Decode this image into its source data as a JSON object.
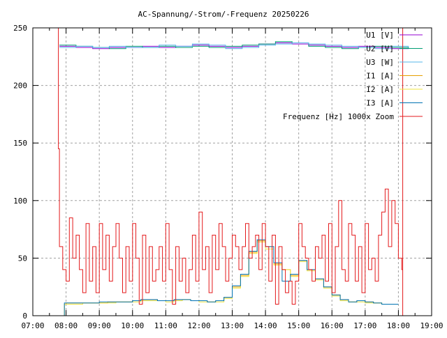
{
  "chart_data": {
    "type": "line",
    "title": "AC-Spannung/-Strom/-Frequenz 20250226",
    "xlabel": "",
    "ylabel": "",
    "xlim": [
      7,
      19
    ],
    "ylim": [
      0,
      250
    ],
    "grid": true,
    "legend_position": "top-right",
    "x_tick_labels": [
      "07:00",
      "08:00",
      "09:00",
      "10:00",
      "11:00",
      "12:00",
      "13:00",
      "14:00",
      "15:00",
      "16:00",
      "17:00",
      "18:00",
      "19:00"
    ],
    "y_tick_labels": [
      "0",
      "50",
      "100",
      "150",
      "200",
      "250"
    ],
    "series": [
      {
        "name": "U1 [V]",
        "color": "#9400d3",
        "x_start": 7.8,
        "x_step": 0.5,
        "values": [
          234,
          233,
          232,
          233,
          233,
          234,
          233,
          234,
          235,
          234,
          233,
          234,
          236,
          237,
          236,
          235,
          234,
          233,
          234,
          233,
          232,
          233
        ]
      },
      {
        "name": "U2 [V]",
        "color": "#009e73",
        "x_start": 7.8,
        "x_step": 0.5,
        "values": [
          235,
          234,
          233,
          232,
          234,
          233,
          234,
          233,
          234,
          233,
          234,
          235,
          236,
          238,
          237,
          234,
          233,
          232,
          233,
          234,
          233,
          232
        ]
      },
      {
        "name": "U3 [W]",
        "color": "#56b4e9",
        "x_start": 7.8,
        "x_step": 0.5,
        "values": [
          233,
          234,
          233,
          234,
          233,
          233,
          235,
          234,
          236,
          235,
          232,
          233,
          235,
          236,
          237,
          236,
          235,
          234,
          233,
          232,
          234,
          233
        ]
      },
      {
        "name": "I1 [A]",
        "color": "#e69f00",
        "x_start": 8.0,
        "x_step": 0.25,
        "lead_in": [
          [
            7.95,
            0
          ],
          [
            7.95,
            10
          ]
        ],
        "values": [
          11,
          11,
          11,
          11,
          11,
          12,
          12,
          12,
          13,
          14,
          14,
          13,
          13,
          14,
          14,
          13,
          13,
          12,
          13,
          16,
          25,
          35,
          55,
          65,
          60,
          45,
          40,
          35,
          48,
          40,
          32,
          25,
          18,
          14,
          12,
          13,
          12,
          11,
          10,
          10,
          10
        ]
      },
      {
        "name": "I2 [A]",
        "color": "#f0e442",
        "x_start": 8.0,
        "x_step": 0.25,
        "lead_in": [
          [
            7.95,
            0
          ],
          [
            7.95,
            10
          ]
        ],
        "values": [
          10,
          10,
          11,
          11,
          11,
          11,
          12,
          12,
          12,
          13,
          13,
          13,
          12,
          13,
          14,
          13,
          12,
          12,
          12,
          15,
          24,
          34,
          54,
          64,
          58,
          44,
          40,
          34,
          47,
          39,
          31,
          24,
          17,
          13,
          12,
          12,
          11,
          11,
          10,
          10,
          10
        ]
      },
      {
        "name": "I3 [A]",
        "color": "#0072b2",
        "x_start": 8.0,
        "x_step": 0.25,
        "lead_in": [
          [
            7.95,
            0
          ],
          [
            7.95,
            11
          ]
        ],
        "values": [
          11,
          11,
          11,
          11,
          12,
          12,
          12,
          12,
          13,
          14,
          14,
          13,
          13,
          14,
          14,
          13,
          13,
          12,
          13,
          16,
          26,
          36,
          56,
          66,
          60,
          46,
          30,
          36,
          48,
          40,
          32,
          25,
          18,
          14,
          12,
          13,
          12,
          11,
          10,
          10,
          10
        ]
      },
      {
        "name": "Frequenz [Hz] 1000x Zoom",
        "color": "#e41a1c",
        "x_start": 7.8,
        "x_step": 0.1,
        "lead_in": [
          [
            7.76,
            250
          ],
          [
            7.77,
            145
          ]
        ],
        "tail": [
          [
            18.13,
            250
          ],
          [
            18.13,
            0
          ]
        ],
        "values": [
          60,
          40,
          30,
          85,
          50,
          70,
          40,
          20,
          80,
          30,
          60,
          20,
          80,
          40,
          70,
          30,
          60,
          80,
          50,
          20,
          60,
          30,
          80,
          50,
          10,
          70,
          20,
          60,
          30,
          40,
          60,
          30,
          80,
          40,
          10,
          60,
          30,
          50,
          20,
          40,
          70,
          30,
          90,
          40,
          60,
          20,
          70,
          40,
          80,
          60,
          30,
          50,
          70,
          60,
          40,
          60,
          80,
          50,
          60,
          70,
          40,
          80,
          60,
          30,
          70,
          10,
          60,
          40,
          20,
          30,
          10,
          30,
          80,
          60,
          50,
          40,
          30,
          60,
          50,
          70,
          30,
          80,
          20,
          60,
          100,
          40,
          30,
          80,
          70,
          30,
          60,
          20,
          80,
          40,
          50,
          30,
          70,
          90,
          110,
          60,
          100,
          80,
          50,
          40
        ]
      }
    ]
  }
}
